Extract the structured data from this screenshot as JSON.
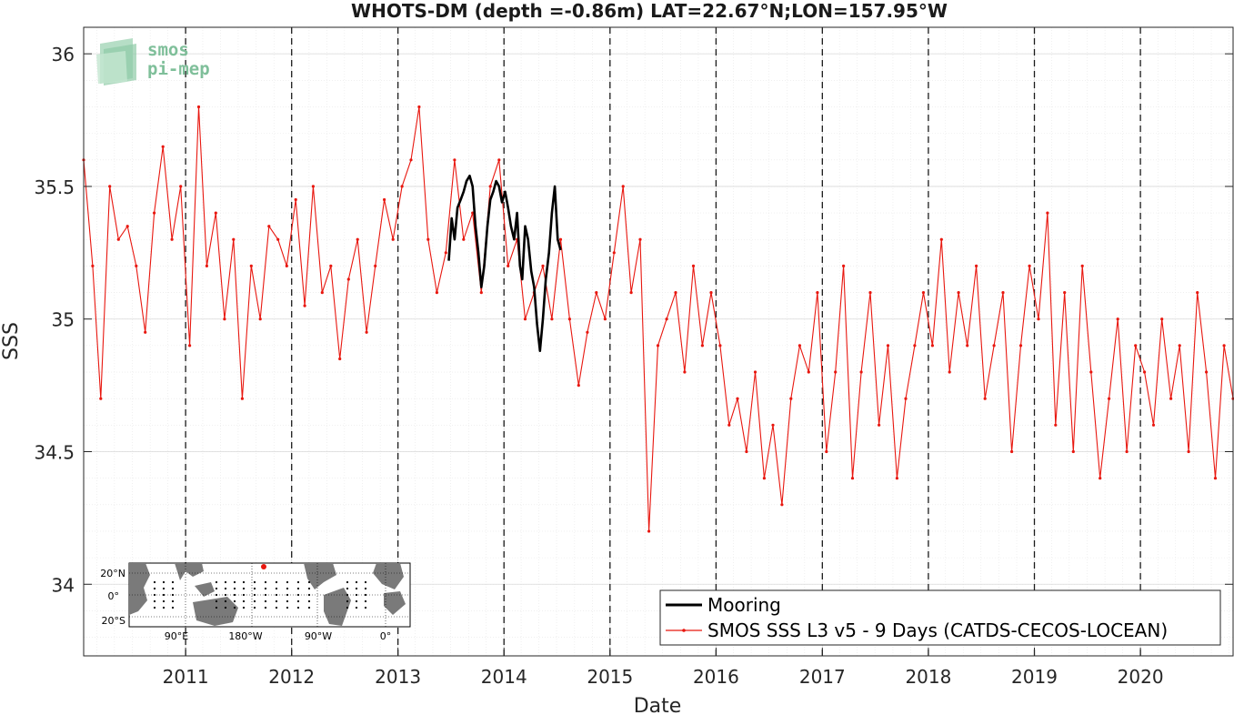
{
  "chart_data": {
    "type": "line",
    "title": "WHOTS-DM (depth =-0.86m) LAT=22.67°N;LON=157.95°W",
    "xlabel": "Date",
    "ylabel": "SSS",
    "xlim": [
      "2010-01-15",
      "2020-11-15"
    ],
    "ylim": [
      33.73,
      36.1
    ],
    "x_ticks": [
      "2011",
      "2012",
      "2013",
      "2014",
      "2015",
      "2016",
      "2017",
      "2018",
      "2019",
      "2020"
    ],
    "y_ticks": [
      "34",
      "34.5",
      "35",
      "35.5",
      "36"
    ],
    "grid": true,
    "minor_grid": true,
    "year_markers": [
      "2011-01-01",
      "2012-01-01",
      "2013-01-01",
      "2014-01-01",
      "2015-01-01",
      "2016-01-01",
      "2017-01-01",
      "2018-01-01",
      "2019-01-01",
      "2020-01-01"
    ],
    "legend_position": "bottom-right",
    "series": [
      {
        "name": "Mooring",
        "color": "#000000",
        "x": [
          "2013-06-25",
          "2013-07-05",
          "2013-07-15",
          "2013-07-25",
          "2013-08-05",
          "2013-08-15",
          "2013-08-25",
          "2013-09-05",
          "2013-09-15",
          "2013-09-25",
          "2013-10-05",
          "2013-10-15",
          "2013-10-25",
          "2013-11-05",
          "2013-11-15",
          "2013-11-25",
          "2013-12-05",
          "2013-12-15",
          "2013-12-25",
          "2014-01-05",
          "2014-01-15",
          "2014-01-25",
          "2014-02-05",
          "2014-02-15",
          "2014-02-25",
          "2014-03-05",
          "2014-03-15",
          "2014-03-25",
          "2014-04-05",
          "2014-04-15",
          "2014-04-25",
          "2014-05-05",
          "2014-05-15",
          "2014-05-25",
          "2014-06-05",
          "2014-06-15",
          "2014-06-25",
          "2014-07-05",
          "2014-07-15"
        ],
        "values": [
          35.22,
          35.38,
          35.3,
          35.42,
          35.45,
          35.48,
          35.52,
          35.54,
          35.5,
          35.35,
          35.25,
          35.12,
          35.2,
          35.35,
          35.45,
          35.48,
          35.52,
          35.5,
          35.44,
          35.48,
          35.42,
          35.35,
          35.3,
          35.4,
          35.2,
          35.15,
          35.35,
          35.3,
          35.18,
          35.12,
          34.98,
          34.88,
          35.0,
          35.15,
          35.25,
          35.4,
          35.5,
          35.3,
          35.26
        ]
      },
      {
        "name": "SMOS SSS L3 v5 - 9 Days (CATDS-CECOS-LOCEAN)",
        "color": "#e8170f",
        "x": [
          "2010-01-15",
          "2010-02-15",
          "2010-03-15",
          "2010-04-15",
          "2010-05-15",
          "2010-06-15",
          "2010-07-15",
          "2010-08-15",
          "2010-09-15",
          "2010-10-15",
          "2010-11-15",
          "2010-12-15",
          "2011-01-15",
          "2011-02-15",
          "2011-03-15",
          "2011-04-15",
          "2011-05-15",
          "2011-06-15",
          "2011-07-15",
          "2011-08-15",
          "2011-09-15",
          "2011-10-15",
          "2011-11-15",
          "2011-12-15",
          "2012-01-15",
          "2012-02-15",
          "2012-03-15",
          "2012-04-15",
          "2012-05-15",
          "2012-06-15",
          "2012-07-15",
          "2012-08-15",
          "2012-09-15",
          "2012-10-15",
          "2012-11-15",
          "2012-12-15",
          "2013-01-15",
          "2013-02-15",
          "2013-03-15",
          "2013-04-15",
          "2013-05-15",
          "2013-06-15",
          "2013-07-15",
          "2013-08-15",
          "2013-09-15",
          "2013-10-15",
          "2013-11-15",
          "2013-12-15",
          "2014-01-15",
          "2014-02-15",
          "2014-03-15",
          "2014-04-15",
          "2014-05-15",
          "2014-06-15",
          "2014-07-15",
          "2014-08-15",
          "2014-09-15",
          "2014-10-15",
          "2014-11-15",
          "2014-12-15",
          "2015-01-15",
          "2015-02-15",
          "2015-03-15",
          "2015-04-15",
          "2015-05-15",
          "2015-06-15",
          "2015-07-15",
          "2015-08-15",
          "2015-09-15",
          "2015-10-15",
          "2015-11-15",
          "2015-12-15",
          "2016-01-15",
          "2016-02-15",
          "2016-03-15",
          "2016-04-15",
          "2016-05-15",
          "2016-06-15",
          "2016-07-15",
          "2016-08-15",
          "2016-09-15",
          "2016-10-15",
          "2016-11-15",
          "2016-12-15",
          "2017-01-15",
          "2017-02-15",
          "2017-03-15",
          "2017-04-15",
          "2017-05-15",
          "2017-06-15",
          "2017-07-15",
          "2017-08-15",
          "2017-09-15",
          "2017-10-15",
          "2017-11-15",
          "2017-12-15",
          "2018-01-15",
          "2018-02-15",
          "2018-03-15",
          "2018-04-15",
          "2018-05-15",
          "2018-06-15",
          "2018-07-15",
          "2018-08-15",
          "2018-09-15",
          "2018-10-15",
          "2018-11-15",
          "2018-12-15",
          "2019-01-15",
          "2019-02-15",
          "2019-03-15",
          "2019-04-15",
          "2019-05-15",
          "2019-06-15",
          "2019-07-15",
          "2019-08-15",
          "2019-09-15",
          "2019-10-15",
          "2019-11-15",
          "2019-12-15",
          "2020-01-15",
          "2020-02-15",
          "2020-03-15",
          "2020-04-15",
          "2020-05-15",
          "2020-06-15",
          "2020-07-15",
          "2020-08-15",
          "2020-09-15",
          "2020-10-15",
          "2020-11-15"
        ],
        "values": [
          35.6,
          35.2,
          34.7,
          35.5,
          35.3,
          35.35,
          35.2,
          34.95,
          35.4,
          35.65,
          35.3,
          35.5,
          34.9,
          35.8,
          35.2,
          35.4,
          35.0,
          35.3,
          34.7,
          35.2,
          35.0,
          35.35,
          35.3,
          35.2,
          35.45,
          35.05,
          35.5,
          35.1,
          35.2,
          34.85,
          35.15,
          35.3,
          34.95,
          35.2,
          35.45,
          35.3,
          35.5,
          35.6,
          35.8,
          35.3,
          35.1,
          35.25,
          35.6,
          35.3,
          35.4,
          35.1,
          35.5,
          35.6,
          35.2,
          35.3,
          35.0,
          35.1,
          35.2,
          35.0,
          35.3,
          35.0,
          34.75,
          34.95,
          35.1,
          35.0,
          35.25,
          35.5,
          35.1,
          35.3,
          34.2,
          34.9,
          35.0,
          35.1,
          34.8,
          35.2,
          34.9,
          35.1,
          34.9,
          34.6,
          34.7,
          34.5,
          34.8,
          34.4,
          34.6,
          34.3,
          34.7,
          34.9,
          34.8,
          35.1,
          34.5,
          34.8,
          35.2,
          34.4,
          34.8,
          35.1,
          34.6,
          34.9,
          34.4,
          34.7,
          34.9,
          35.1,
          34.9,
          35.3,
          34.8,
          35.1,
          34.9,
          35.2,
          34.7,
          34.9,
          35.1,
          34.5,
          34.9,
          35.2,
          35.0,
          35.4,
          34.6,
          35.1,
          34.5,
          35.2,
          34.8,
          34.4,
          34.7,
          35.0,
          34.5,
          34.9,
          34.8,
          34.6,
          35.0,
          34.7,
          34.9,
          34.5,
          35.1,
          34.8,
          34.4,
          34.9,
          34.7
        ]
      }
    ]
  },
  "legend": {
    "mooring_label": "Mooring",
    "smos_label": "SMOS SSS L3 v5 - 9 Days (CATDS-CECOS-LOCEAN)"
  },
  "logo": {
    "line1": "smos",
    "line2": "pi-mep",
    "color": "#7fbf9a"
  },
  "inset_map": {
    "lat_labels": [
      "20°N",
      "0°",
      "20°S"
    ],
    "lon_labels": [
      "90°E",
      "180°W",
      "90°W",
      "0°"
    ],
    "land_color": "#7a7a7a",
    "station_color": "#e8170f"
  }
}
